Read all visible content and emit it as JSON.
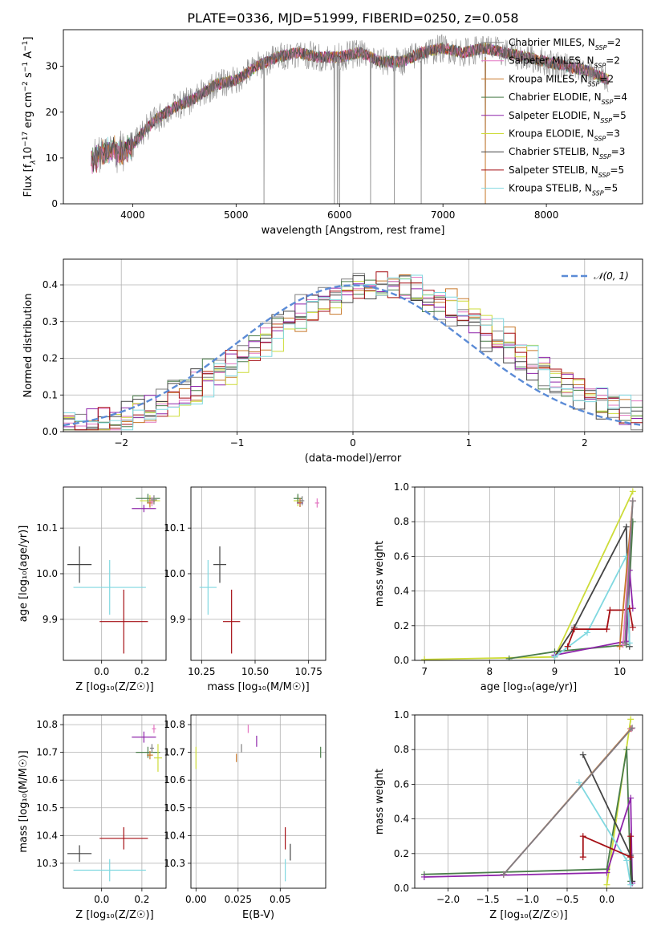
{
  "figure_title": "PLATE=0336, MJD=51999, FIBERID=0250, z=0.058",
  "series_colors": {
    "chabrier_miles": "#7f7f7f",
    "salpeter_miles": "#e377c2",
    "kroupa_miles": "#c8782a",
    "chabrier_elodie": "#4a7d4a",
    "salpeter_elodie": "#8e24aa",
    "kroupa_elodie": "#cddc39",
    "chabrier_stelib": "#444444",
    "salpeter_stelib": "#a50f15",
    "kroupa_stelib": "#80d8e0",
    "normal_curve": "#5b8bd6"
  },
  "legend_top": [
    {
      "model": "Chabrier MILES",
      "n": "2",
      "color_key": "chabrier_miles"
    },
    {
      "model": "Salpeter MILES",
      "n": "2",
      "color_key": "salpeter_miles"
    },
    {
      "model": "Kroupa MILES",
      "n": "2",
      "color_key": "kroupa_miles"
    },
    {
      "model": "Chabrier ELODIE",
      "n": "4",
      "color_key": "chabrier_elodie"
    },
    {
      "model": "Salpeter ELODIE",
      "n": "5",
      "color_key": "salpeter_elodie"
    },
    {
      "model": "Kroupa ELODIE",
      "n": "3",
      "color_key": "kroupa_elodie"
    },
    {
      "model": "Chabrier STELIB",
      "n": "3",
      "color_key": "chabrier_stelib"
    },
    {
      "model": "Salpeter STELIB",
      "n": "5",
      "color_key": "salpeter_stelib"
    },
    {
      "model": "Kroupa STELIB",
      "n": "5",
      "color_key": "kroupa_stelib"
    }
  ],
  "legend_hist": "𝒩(0, 1)",
  "chart_data": [
    {
      "id": "spectrum",
      "type": "line",
      "xlabel": "wavelength [Angstrom, rest frame]",
      "ylabel_parts": [
        "Flux [f",
        "λ",
        "10",
        "−17",
        " erg cm",
        "−2",
        " s",
        "−1",
        " A",
        "−1",
        "]"
      ],
      "xlim": [
        3330,
        8930
      ],
      "ylim": [
        0,
        38
      ],
      "xticks": [
        4000,
        5000,
        6000,
        7000,
        8000
      ],
      "yticks": [
        0,
        10,
        20,
        30
      ],
      "continuum_x": [
        3600,
        3700,
        3800,
        3900,
        4000,
        4200,
        4400,
        4600,
        4800,
        5000,
        5200,
        5400,
        5600,
        5800,
        6000,
        6200,
        6400,
        6600,
        6800,
        7000,
        7200,
        7400,
        7600,
        7800,
        8000,
        8200,
        8400,
        8600
      ],
      "continuum_y": [
        9,
        11,
        12,
        11,
        13,
        18,
        21,
        23,
        26,
        27,
        30,
        32,
        33,
        32,
        32,
        33,
        31,
        31,
        33,
        34,
        33,
        34,
        33,
        32,
        31,
        30,
        29,
        27
      ],
      "spike_x": [
        5270,
        5950,
        5980,
        6000,
        6300,
        6530,
        6790,
        7410
      ]
    },
    {
      "id": "residual_hist",
      "type": "histogram",
      "xlabel": "(data-model)/error",
      "ylabel": "Normed distribution",
      "xlim": [
        -2.5,
        2.5
      ],
      "ylim": [
        0,
        0.47
      ],
      "xticks": [
        -2,
        -1,
        0,
        1,
        2
      ],
      "xtick_labels": [
        "−2",
        "−1",
        "0",
        "1",
        "2"
      ],
      "yticks": [
        0.0,
        0.1,
        0.2,
        0.3,
        0.4
      ],
      "ytick_labels": [
        "0.0",
        "0.1",
        "0.2",
        "0.3",
        "0.4"
      ],
      "bin_width": 0.1,
      "reference": {
        "name": "𝒩(0, 1)",
        "mean": 0,
        "sigma": 1
      }
    },
    {
      "id": "age_vs_z",
      "type": "errorbar",
      "xlabel": "Z [log₁₀(Z/Z☉)]",
      "ylabel": "age  [log₁₀(age/yr)]",
      "xlim": [
        -0.19,
        0.32
      ],
      "ylim": [
        9.81,
        10.19
      ],
      "xticks": [
        0.0,
        0.2
      ],
      "xtick_labels": [
        "0.0",
        "0.2"
      ],
      "yticks": [
        9.9,
        10.0,
        10.1
      ],
      "ytick_labels": [
        "9.9",
        "10.0",
        "10.1"
      ],
      "points": [
        {
          "x": -0.11,
          "y": 10.02,
          "xerr": 0.06,
          "yerr": 0.04,
          "color_key": "chabrier_stelib"
        },
        {
          "x": 0.04,
          "y": 9.97,
          "xerr": 0.18,
          "yerr": 0.06,
          "color_key": "kroupa_stelib"
        },
        {
          "x": 0.11,
          "y": 9.895,
          "xerr": 0.12,
          "yerr": 0.07,
          "color_key": "salpeter_stelib"
        },
        {
          "x": 0.24,
          "y": 10.16,
          "xerr": 0.05,
          "yerr": 0.012,
          "color_key": "kroupa_elodie"
        },
        {
          "x": 0.23,
          "y": 10.165,
          "xerr": 0.06,
          "yerr": 0.01,
          "color_key": "chabrier_elodie"
        },
        {
          "x": 0.21,
          "y": 10.143,
          "xerr": 0.06,
          "yerr": 0.008,
          "color_key": "salpeter_elodie"
        },
        {
          "x": 0.24,
          "y": 10.155,
          "xerr": 0.015,
          "yerr": 0.01,
          "color_key": "kroupa_miles"
        },
        {
          "x": 0.25,
          "y": 10.158,
          "xerr": 0.015,
          "yerr": 0.01,
          "color_key": "salpeter_miles"
        },
        {
          "x": 0.26,
          "y": 10.162,
          "xerr": 0.015,
          "yerr": 0.01,
          "color_key": "chabrier_miles"
        }
      ]
    },
    {
      "id": "age_vs_mass",
      "type": "errorbar",
      "xlabel": "mass [log₁₀(M/M☉)]",
      "ylabel": "",
      "xlim": [
        10.2,
        10.83
      ],
      "ylim": [
        9.81,
        10.19
      ],
      "xticks": [
        10.25,
        10.5,
        10.75
      ],
      "xtick_labels": [
        "10.25",
        "10.50",
        "10.75"
      ],
      "yticks": [
        9.9,
        10.0,
        10.1
      ],
      "ytick_labels": [
        "9.9",
        "10.0",
        "10.1"
      ],
      "points": [
        {
          "x": 10.335,
          "y": 10.02,
          "xerr": 0.03,
          "yerr": 0.04,
          "color_key": "chabrier_stelib"
        },
        {
          "x": 10.28,
          "y": 9.97,
          "xerr": 0.04,
          "yerr": 0.06,
          "color_key": "kroupa_stelib"
        },
        {
          "x": 10.39,
          "y": 9.895,
          "xerr": 0.04,
          "yerr": 0.07,
          "color_key": "salpeter_stelib"
        },
        {
          "x": 10.7,
          "y": 10.16,
          "xerr": 0.02,
          "yerr": 0.012,
          "color_key": "kroupa_elodie"
        },
        {
          "x": 10.7,
          "y": 10.165,
          "xerr": 0.02,
          "yerr": 0.01,
          "color_key": "chabrier_elodie"
        },
        {
          "x": 10.71,
          "y": 10.155,
          "xerr": 0.015,
          "yerr": 0.008,
          "color_key": "salpeter_elodie"
        },
        {
          "x": 10.71,
          "y": 10.156,
          "xerr": 0.01,
          "yerr": 0.01,
          "color_key": "kroupa_miles"
        },
        {
          "x": 10.79,
          "y": 10.155,
          "xerr": 0.01,
          "yerr": 0.01,
          "color_key": "salpeter_miles"
        },
        {
          "x": 10.72,
          "y": 10.16,
          "xerr": 0.01,
          "yerr": 0.01,
          "color_key": "chabrier_miles"
        }
      ]
    },
    {
      "id": "massweight_vs_age",
      "type": "line",
      "xlabel": "age  [log₁₀(age/yr)]",
      "ylabel": "mass weight",
      "xlim": [
        6.85,
        10.35
      ],
      "ylim": [
        0,
        1
      ],
      "xticks": [
        7,
        8,
        9,
        10
      ],
      "xtick_labels": [
        "7",
        "8",
        "9",
        "10"
      ],
      "yticks": [
        0,
        0.2,
        0.4,
        0.6,
        0.8,
        1.0
      ],
      "ytick_labels": [
        "0.0",
        "0.2",
        "0.4",
        "0.6",
        "0.8",
        "1.0"
      ],
      "series": [
        {
          "color_key": "kroupa_elodie",
          "x": [
            7.0,
            9.0,
            10.2
          ],
          "y": [
            0.005,
            0.02,
            0.975
          ]
        },
        {
          "color_key": "chabrier_elodie",
          "x": [
            8.3,
            9.0,
            10.1,
            10.2
          ],
          "y": [
            0.01,
            0.05,
            0.09,
            0.8
          ]
        },
        {
          "color_key": "chabrier_stelib",
          "x": [
            9.0,
            9.3,
            10.1,
            10.15
          ],
          "y": [
            0.02,
            0.19,
            0.77,
            0.08
          ]
        },
        {
          "color_key": "salpeter_elodie",
          "x": [
            9.0,
            10.1,
            10.15,
            10.2
          ],
          "y": [
            0.03,
            0.11,
            0.52,
            0.3
          ]
        },
        {
          "color_key": "kroupa_stelib",
          "x": [
            9.0,
            9.5,
            10.1,
            10.15
          ],
          "y": [
            0.02,
            0.16,
            0.6,
            0.1
          ]
        },
        {
          "color_key": "salpeter_stelib",
          "x": [
            9.2,
            9.3,
            9.8,
            9.85,
            10.05,
            10.15,
            10.2
          ],
          "y": [
            0.08,
            0.18,
            0.18,
            0.29,
            0.29,
            0.3,
            0.19
          ]
        },
        {
          "color_key": "kroupa_miles",
          "x": [
            10.0,
            10.2
          ],
          "y": [
            0.08,
            0.92
          ]
        },
        {
          "color_key": "salpeter_miles",
          "x": [
            10.05,
            10.2
          ],
          "y": [
            0.09,
            0.92
          ]
        },
        {
          "color_key": "chabrier_miles",
          "x": [
            10.08,
            10.2
          ],
          "y": [
            0.1,
            0.92
          ]
        }
      ]
    },
    {
      "id": "mass_vs_z",
      "type": "errorbar",
      "xlabel": "Z [log₁₀(Z/Z☉)]",
      "ylabel": "mass [log₁₀(M/M☉)]",
      "xlim": [
        -0.19,
        0.32
      ],
      "ylim": [
        10.21,
        10.835
      ],
      "xticks": [
        0.0,
        0.2
      ],
      "xtick_labels": [
        "0.0",
        "0.2"
      ],
      "yticks": [
        10.3,
        10.4,
        10.5,
        10.6,
        10.7,
        10.8
      ],
      "ytick_labels": [
        "10.3",
        "10.4",
        "10.5",
        "10.6",
        "10.7",
        "10.8"
      ],
      "points": [
        {
          "x": -0.11,
          "y": 10.335,
          "xerr": 0.06,
          "yerr": 0.03,
          "color_key": "chabrier_stelib"
        },
        {
          "x": 0.04,
          "y": 10.275,
          "xerr": 0.18,
          "yerr": 0.04,
          "color_key": "kroupa_stelib"
        },
        {
          "x": 0.11,
          "y": 10.39,
          "xerr": 0.12,
          "yerr": 0.04,
          "color_key": "salpeter_stelib"
        },
        {
          "x": 0.21,
          "y": 10.755,
          "xerr": 0.06,
          "yerr": 0.02,
          "color_key": "salpeter_elodie"
        },
        {
          "x": 0.23,
          "y": 10.7,
          "xerr": 0.06,
          "yerr": 0.02,
          "color_key": "chabrier_elodie"
        },
        {
          "x": 0.28,
          "y": 10.68,
          "xerr": 0.02,
          "yerr": 0.05,
          "color_key": "kroupa_elodie"
        },
        {
          "x": 0.24,
          "y": 10.69,
          "xerr": 0.015,
          "yerr": 0.015,
          "color_key": "kroupa_miles"
        },
        {
          "x": 0.26,
          "y": 10.785,
          "xerr": 0.01,
          "yerr": 0.015,
          "color_key": "salpeter_miles"
        },
        {
          "x": 0.25,
          "y": 10.715,
          "xerr": 0.01,
          "yerr": 0.015,
          "color_key": "chabrier_miles"
        }
      ]
    },
    {
      "id": "mass_vs_ebv",
      "type": "errorbar",
      "xlabel": "E(B-V)",
      "ylabel": "",
      "xlim": [
        -0.003,
        0.077
      ],
      "ylim": [
        10.21,
        10.835
      ],
      "xticks": [
        0.0,
        0.025,
        0.05
      ],
      "xtick_labels": [
        "0.00",
        "0.025",
        "0.05"
      ],
      "yticks": [
        10.3,
        10.4,
        10.5,
        10.6,
        10.7,
        10.8
      ],
      "ytick_labels": [
        "10.3",
        "10.4",
        "10.5",
        "10.6",
        "10.7",
        "10.8"
      ],
      "points": [
        {
          "x": 0.0,
          "y": 10.68,
          "xerr": 0,
          "yerr": 0.04,
          "color_key": "kroupa_elodie"
        },
        {
          "x": 0.024,
          "y": 10.68,
          "xerr": 0,
          "yerr": 0.015,
          "color_key": "kroupa_miles"
        },
        {
          "x": 0.027,
          "y": 10.715,
          "xerr": 0,
          "yerr": 0.015,
          "color_key": "chabrier_miles"
        },
        {
          "x": 0.031,
          "y": 10.785,
          "xerr": 0,
          "yerr": 0.015,
          "color_key": "salpeter_miles"
        },
        {
          "x": 0.036,
          "y": 10.74,
          "xerr": 0,
          "yerr": 0.02,
          "color_key": "salpeter_elodie"
        },
        {
          "x": 0.053,
          "y": 10.39,
          "xerr": 0,
          "yerr": 0.04,
          "color_key": "salpeter_stelib"
        },
        {
          "x": 0.053,
          "y": 10.275,
          "xerr": 0,
          "yerr": 0.04,
          "color_key": "kroupa_stelib"
        },
        {
          "x": 0.056,
          "y": 10.34,
          "xerr": 0,
          "yerr": 0.03,
          "color_key": "chabrier_stelib"
        },
        {
          "x": 0.074,
          "y": 10.7,
          "xerr": 0,
          "yerr": 0.02,
          "color_key": "chabrier_elodie"
        }
      ]
    },
    {
      "id": "massweight_vs_z",
      "type": "line",
      "xlabel": "Z [log₁₀(Z/Z☉)]",
      "ylabel": "mass weight",
      "xlim": [
        -2.42,
        0.45
      ],
      "ylim": [
        0,
        1
      ],
      "xticks": [
        -2.0,
        -1.5,
        -1.0,
        -0.5,
        0.0
      ],
      "xtick_labels": [
        "−2.0",
        "−1.5",
        "−1.0",
        "−0.5",
        "0.0"
      ],
      "yticks": [
        0,
        0.2,
        0.4,
        0.6,
        0.8,
        1.0
      ],
      "ytick_labels": [
        "0.0",
        "0.2",
        "0.4",
        "0.6",
        "0.8",
        "1.0"
      ],
      "series": [
        {
          "color_key": "kroupa_elodie",
          "x": [
            0.0,
            0.3
          ],
          "y": [
            0.02,
            0.975
          ]
        },
        {
          "color_key": "chabrier_elodie",
          "x": [
            -2.3,
            0.0,
            0.25,
            0.3
          ],
          "y": [
            0.08,
            0.11,
            0.8,
            0.04
          ]
        },
        {
          "color_key": "salpeter_elodie",
          "x": [
            -2.3,
            0.0,
            0.3,
            0.32
          ],
          "y": [
            0.065,
            0.09,
            0.52,
            0.03
          ]
        },
        {
          "color_key": "chabrier_stelib",
          "x": [
            -0.3,
            0.3,
            0.32
          ],
          "y": [
            0.77,
            0.19,
            0.04
          ]
        },
        {
          "color_key": "kroupa_stelib",
          "x": [
            -0.35,
            0.25,
            0.3
          ],
          "y": [
            0.61,
            0.16,
            0.02
          ]
        },
        {
          "color_key": "salpeter_stelib",
          "x": [
            -0.3,
            -0.3,
            0.3,
            0.3
          ],
          "y": [
            0.18,
            0.3,
            0.18,
            0.3
          ]
        },
        {
          "color_key": "kroupa_miles",
          "x": [
            -1.3,
            0.3
          ],
          "y": [
            0.08,
            0.92
          ]
        },
        {
          "color_key": "salpeter_miles",
          "x": [
            -1.3,
            0.31
          ],
          "y": [
            0.08,
            0.92
          ]
        },
        {
          "color_key": "chabrier_miles",
          "x": [
            -1.3,
            0.32
          ],
          "y": [
            0.08,
            0.925
          ]
        }
      ]
    }
  ]
}
